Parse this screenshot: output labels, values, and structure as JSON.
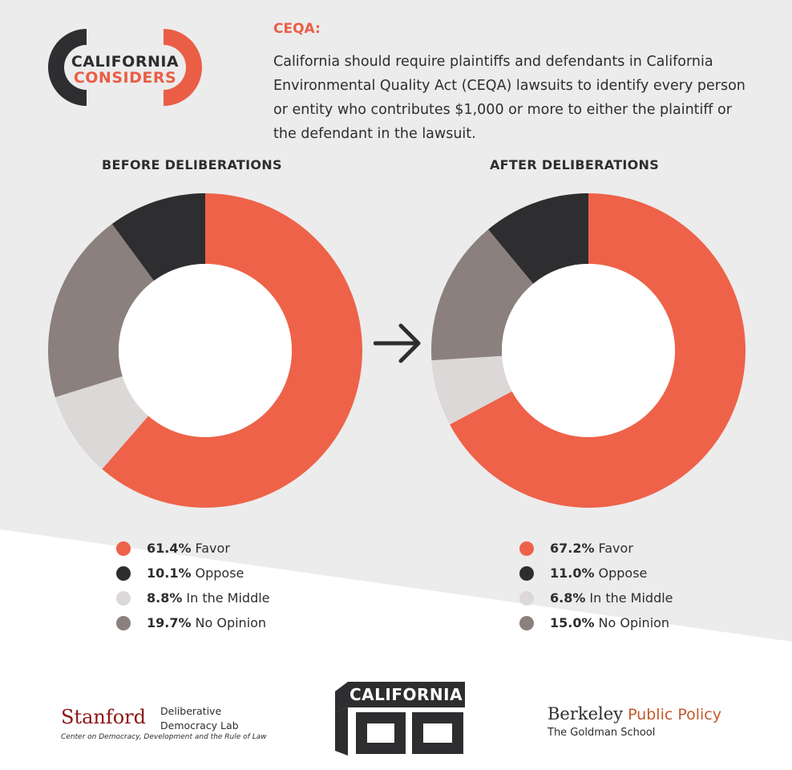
{
  "logo": {
    "line1": "CALIFORNIA",
    "line2": "CONSIDERS"
  },
  "header": {
    "topic": "CEQA:",
    "question": "California should require plaintiffs and defendants in California Environmental Quality Act (CEQA) lawsuits to identify every person or entity who contributes $1,000 or more to either the plaintiff or the defendant in the lawsuit."
  },
  "colors": {
    "favor": "#ee6249",
    "oppose": "#2e2d2f",
    "middle": "#dcd8d8",
    "no_opinion": "#8b807e",
    "background_top": "#ececec",
    "background_bottom": "#ffffff"
  },
  "arrow_icon": "right-arrow-icon",
  "chart_data": [
    {
      "type": "pie",
      "style": "donut",
      "title": "BEFORE DELIBERATIONS",
      "categories": [
        "Favor",
        "Oppose",
        "In the Middle",
        "No Opinion"
      ],
      "values": [
        61.4,
        10.1,
        8.8,
        19.7
      ],
      "labels": [
        "61.4%",
        "10.1%",
        "8.8%",
        "19.7%"
      ],
      "colors": [
        "#ee6249",
        "#2e2d2f",
        "#dcd8d8",
        "#8b807e"
      ],
      "legend": "bottom"
    },
    {
      "type": "pie",
      "style": "donut",
      "title": "AFTER DELIBERATIONS",
      "categories": [
        "Favor",
        "Oppose",
        "In the Middle",
        "No Opinion"
      ],
      "values": [
        67.2,
        11.0,
        6.8,
        15.0
      ],
      "labels": [
        "67.2%",
        "11.0%",
        "6.8%",
        "15.0%"
      ],
      "colors": [
        "#ee6249",
        "#2e2d2f",
        "#dcd8d8",
        "#8b807e"
      ],
      "legend": "bottom"
    }
  ],
  "footer": {
    "stanford": {
      "name": "Stanford",
      "lab_line1": "Deliberative",
      "lab_line2": "Democracy Lab",
      "subtitle": "Center on Democracy, Development and the Rule of Law"
    },
    "california100": {
      "line1": "CALIFORNIA",
      "line2": "100"
    },
    "berkeley": {
      "name": "Berkeley",
      "dept": "Public Policy",
      "school": "The Goldman School"
    }
  }
}
